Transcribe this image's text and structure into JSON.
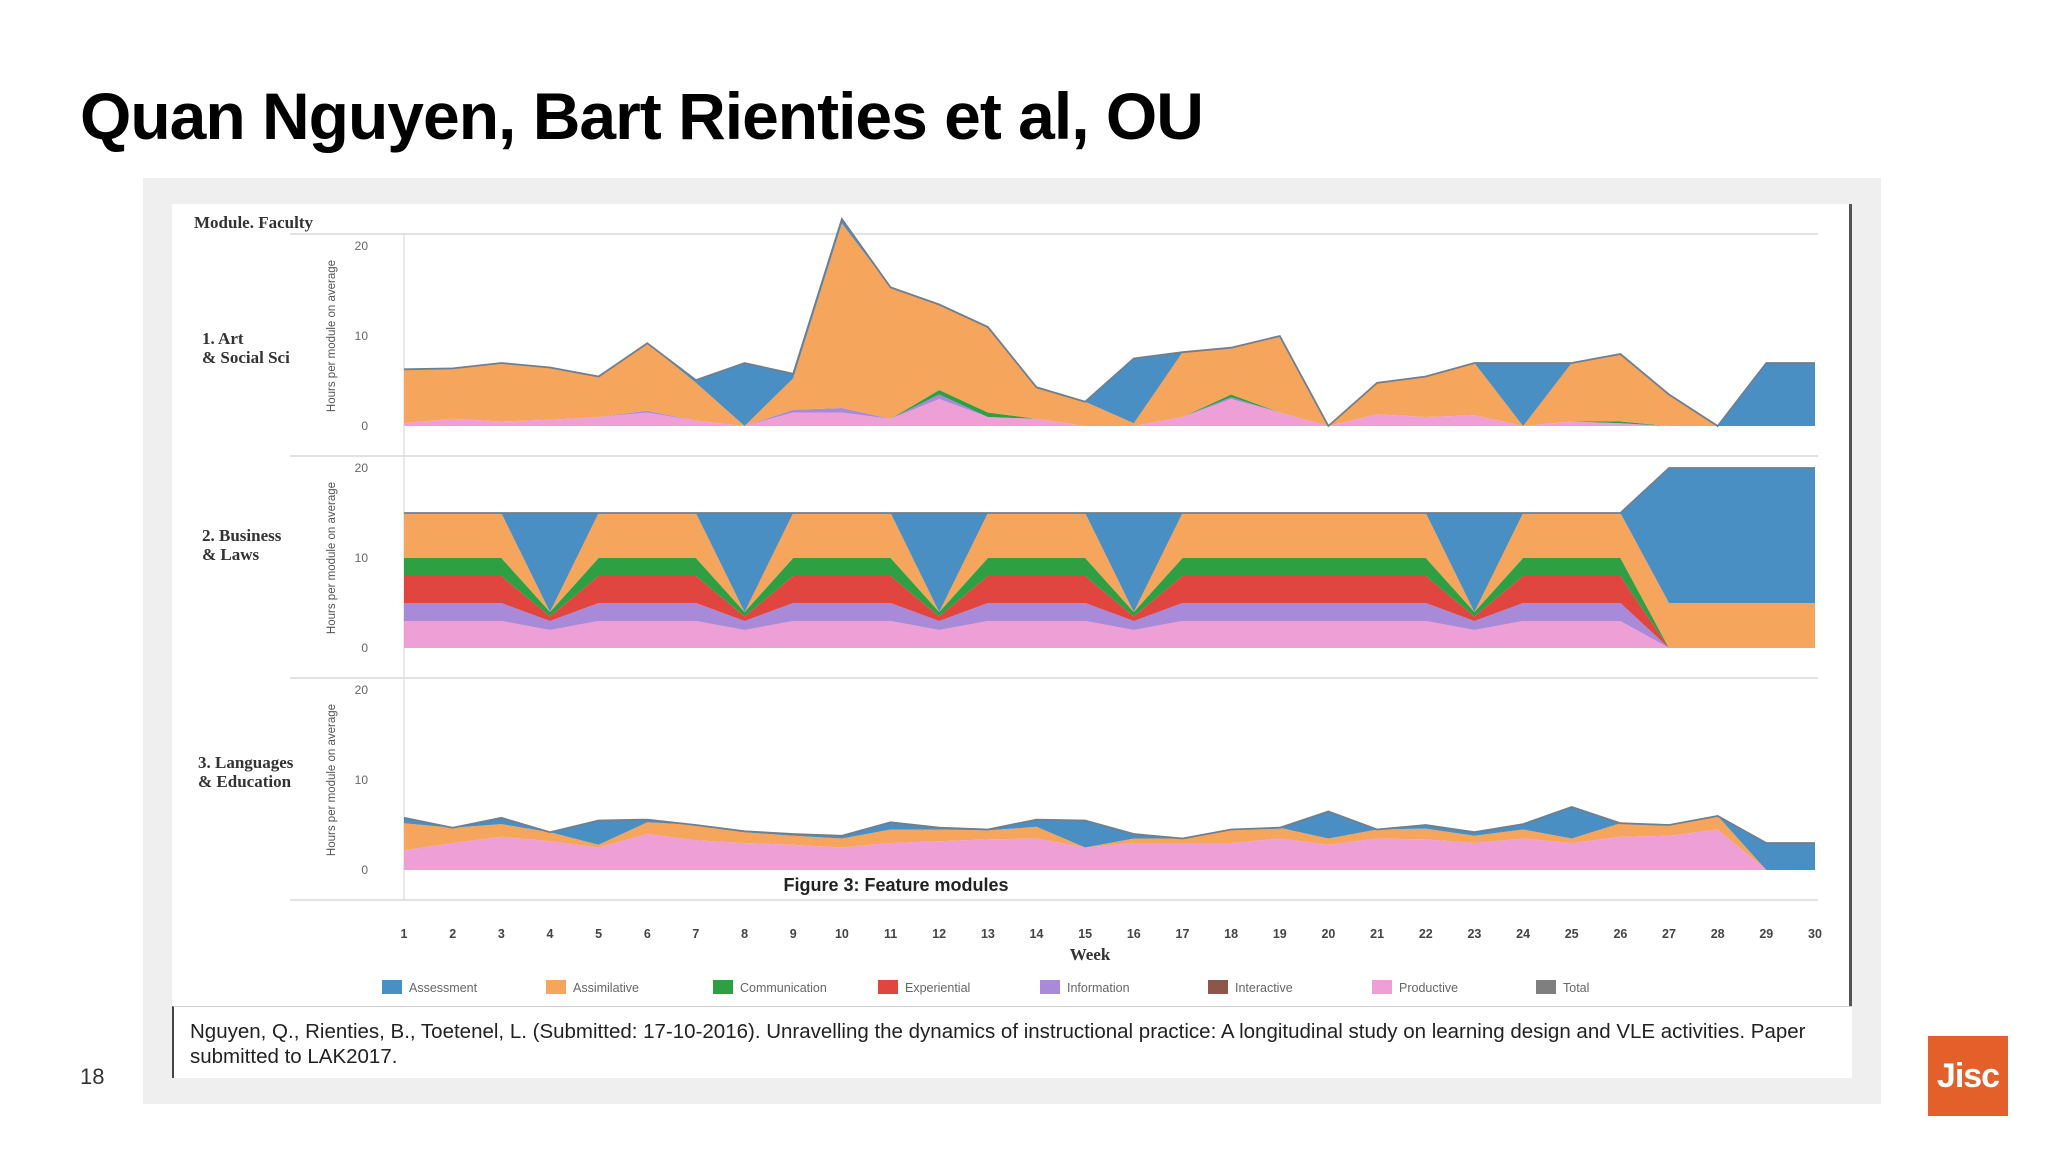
{
  "slide": {
    "title": "Quan Nguyen, Bart Rienties et al, OU",
    "page_number": "18",
    "logo_text": "Jisc"
  },
  "figure": {
    "header": "Module. Faculty",
    "caption_overlay": "Figure 3: Feature modules",
    "citation": "Nguyen, Q., Rienties, B., Toetenel, L. (Submitted: 17-10-2016). Unravelling the dynamics of instructional practice: A longitudinal study on learning design and VLE activities. Paper submitted to LAK2017."
  },
  "chart_data": {
    "type": "area",
    "stacked": true,
    "xlabel": "Week",
    "ylabel": "Hours per module on average",
    "x": [
      1,
      2,
      3,
      4,
      5,
      6,
      7,
      8,
      9,
      10,
      11,
      12,
      13,
      14,
      15,
      16,
      17,
      18,
      19,
      20,
      21,
      22,
      23,
      24,
      25,
      26,
      27,
      28,
      29,
      30
    ],
    "ylim": [
      0,
      25
    ],
    "yticks": [
      0,
      10,
      20
    ],
    "grid": false,
    "legend_position": "bottom",
    "legend": [
      {
        "name": "Assessment",
        "color": "#4a8fc4"
      },
      {
        "name": "Assimilative",
        "color": "#f5a55c"
      },
      {
        "name": "Communication",
        "color": "#2ea043"
      },
      {
        "name": "Experiential",
        "color": "#e0453f"
      },
      {
        "name": "Information",
        "color": "#a88ad8"
      },
      {
        "name": "Interactive",
        "color": "#8c564b"
      },
      {
        "name": "Productive",
        "color": "#eea0d6"
      },
      {
        "name": "Total",
        "color": "#7f7f7f"
      }
    ],
    "panels": [
      {
        "name": "1. Art & Social Sci",
        "series": [
          {
            "name": "Productive",
            "values": [
              0.3,
              0.8,
              0.5,
              0.7,
              1,
              1.5,
              0.6,
              0,
              1.5,
              1.5,
              0.8,
              3,
              1,
              0.8,
              0,
              0,
              1,
              3,
              1.5,
              0,
              1.3,
              1,
              1.2,
              0,
              0.5,
              0.3,
              0,
              0,
              0,
              0
            ]
          },
          {
            "name": "Information",
            "values": [
              0,
              0,
              0,
              0,
              0,
              0.2,
              0,
              0,
              0.3,
              0.5,
              0,
              0.5,
              0,
              0,
              0,
              0,
              0,
              0.2,
              0,
              0,
              0,
              0,
              0,
              0,
              0,
              0,
              0,
              0,
              0,
              0
            ]
          },
          {
            "name": "Communication",
            "values": [
              0,
              0,
              0,
              0,
              0,
              0,
              0,
              0,
              0,
              0,
              0,
              0.5,
              0.5,
              0,
              0,
              0,
              0,
              0.3,
              0,
              0,
              0,
              0,
              0,
              0,
              0,
              0.2,
              0,
              0,
              0,
              0
            ]
          },
          {
            "name": "Assimilative",
            "values": [
              6,
              5.6,
              6.5,
              5.8,
              4.5,
              7.5,
              4.2,
              0,
              3.5,
              20.5,
              14.6,
              9.5,
              9.5,
              3.5,
              2.7,
              0.3,
              7.2,
              5.2,
              8.5,
              0,
              3.5,
              4.5,
              5.8,
              0,
              6.5,
              7.5,
              3.5,
              0,
              0,
              0
            ]
          },
          {
            "name": "Assessment",
            "values": [
              0,
              0,
              0,
              0,
              0,
              0,
              0.3,
              7,
              0.5,
              0.5,
              0,
              0,
              0,
              0,
              0,
              7.2,
              0,
              0,
              0,
              0,
              0,
              0,
              0,
              7,
              0,
              0,
              0,
              0,
              7,
              7
            ]
          }
        ]
      },
      {
        "name": "2. Business & Laws",
        "series": [
          {
            "name": "Productive",
            "values": [
              3,
              3,
              3,
              2,
              3,
              3,
              3,
              2,
              3,
              3,
              3,
              2,
              3,
              3,
              3,
              2,
              3,
              3,
              3,
              3,
              3,
              3,
              2,
              3,
              3,
              3,
              0,
              0,
              0,
              0
            ]
          },
          {
            "name": "Information",
            "values": [
              2,
              2,
              2,
              1,
              2,
              2,
              2,
              1,
              2,
              2,
              2,
              1,
              2,
              2,
              2,
              1,
              2,
              2,
              2,
              2,
              2,
              2,
              1,
              2,
              2,
              2,
              0,
              0,
              0,
              0
            ]
          },
          {
            "name": "Experiential",
            "values": [
              3,
              3,
              3,
              0.5,
              3,
              3,
              3,
              0.5,
              3,
              3,
              3,
              0.5,
              3,
              3,
              3,
              0.5,
              3,
              3,
              3,
              3,
              3,
              3,
              0.5,
              3,
              3,
              3,
              0,
              0,
              0,
              0
            ]
          },
          {
            "name": "Communication",
            "values": [
              2,
              2,
              2,
              0.5,
              2,
              2,
              2,
              0.5,
              2,
              2,
              2,
              0.5,
              2,
              2,
              2,
              0.5,
              2,
              2,
              2,
              2,
              2,
              2,
              0.5,
              2,
              2,
              2,
              0,
              0,
              0,
              0
            ]
          },
          {
            "name": "Assimilative",
            "values": [
              5,
              5,
              5,
              0,
              5,
              5,
              5,
              0,
              5,
              5,
              5,
              0,
              5,
              5,
              5,
              0,
              5,
              5,
              5,
              5,
              5,
              5,
              0,
              5,
              5,
              5,
              5,
              5,
              5,
              5
            ]
          },
          {
            "name": "Assessment",
            "values": [
              0,
              0,
              0,
              11,
              0,
              0,
              0,
              11,
              0,
              0,
              0,
              11,
              0,
              0,
              0,
              11,
              0,
              0,
              0,
              0,
              0,
              0,
              11,
              0,
              0,
              0,
              15,
              15,
              15,
              15
            ]
          }
        ]
      },
      {
        "name": "3. Languages & Education",
        "series": [
          {
            "name": "Productive",
            "values": [
              2.2,
              3,
              3.7,
              3.2,
              2.5,
              4,
              3.3,
              3,
              2.8,
              2.5,
              3,
              3.2,
              3.4,
              3.5,
              2.5,
              3,
              3,
              3,
              3.5,
              2.8,
              3.5,
              3.4,
              3,
              3.5,
              3,
              3.7,
              3.8,
              4.5,
              0,
              0
            ]
          },
          {
            "name": "Assimilative",
            "values": [
              3,
              1.7,
              1.4,
              1,
              0.3,
              1.3,
              1.7,
              1.2,
              1,
              1,
              1.5,
              1.3,
              1,
              1.3,
              0,
              0.5,
              0.5,
              1.5,
              1.2,
              0.7,
              1,
              1.2,
              0.8,
              1,
              0.5,
              1.5,
              1.2,
              1.5,
              0,
              0
            ]
          },
          {
            "name": "Assessment",
            "values": [
              0.6,
              0,
              0.7,
              0,
              2.7,
              0.3,
              0,
              0.1,
              0.2,
              0.3,
              0.8,
              0.2,
              0.1,
              0.8,
              3,
              0.5,
              0,
              0,
              0,
              3,
              0,
              0.4,
              0.4,
              0.6,
              3.5,
              0,
              0,
              0,
              3,
              3
            ]
          }
        ]
      }
    ]
  }
}
